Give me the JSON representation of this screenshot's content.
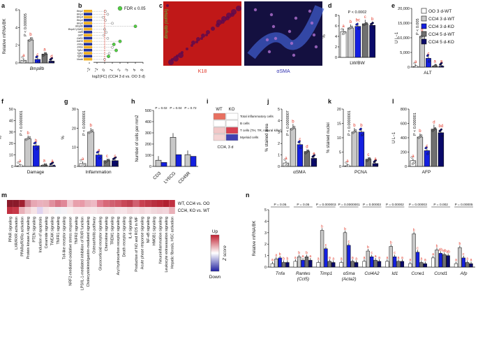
{
  "panel_letters": [
    "a",
    "b",
    "c",
    "d",
    "e",
    "f",
    "g",
    "h",
    "i",
    "j",
    "k",
    "l",
    "m",
    "n"
  ],
  "colors": {
    "oo": "#ffffff",
    "wt3": "#c8c8c8",
    "ko3": "#1420e0",
    "wt5": "#707070",
    "ko5": "#0a0a6a",
    "red_sig": "#e03020",
    "green": "#50d040",
    "heat_up": "#c02030",
    "heat_down": "#2020a0"
  },
  "legend": {
    "items": [
      {
        "label": "OO 3 d-WT",
        "color": "#ffffff"
      },
      {
        "label": "CCl4 3 d-WT",
        "color": "#c8c8c8"
      },
      {
        "label": "CCl4 3 d-KO",
        "color": "#1420e0"
      },
      {
        "label": "CCl4 5 d-WT",
        "color": "#707070"
      },
      {
        "label": "CCl4 5 d-KO",
        "color": "#0a0a6a"
      }
    ]
  },
  "panel_a": {
    "ylabel": "Relative mRNA/BK",
    "xlabel": "Bmp8b",
    "pval": "P < 0.000005",
    "yticks": [
      "0",
      "2",
      "4",
      "6"
    ],
    "letters": [
      "a",
      "b",
      "c",
      "a",
      "d"
    ],
    "values": [
      0.3,
      2.6,
      0.4,
      1.0,
      0.2
    ]
  },
  "panel_b": {
    "genes": [
      "Bmp2",
      "Bmp3",
      "Bmp4",
      "Bmp5",
      "Bmp6",
      "Bmp8b",
      "Bmp10 (Gdf2)",
      "Gdf5",
      "Gdf7",
      "Gdf11",
      "Gdf15",
      "Inhba",
      "Inhbe",
      "Tgfb1",
      "Tgfb2",
      "Tgfb3",
      "Nodal"
    ],
    "legend": "FDR ≤ 0.05",
    "xlabel": "log2(FC) (CCl4 3 d vs. OO 3 d)",
    "xticks": [
      "−2",
      "−1",
      "0",
      "1",
      "2",
      "3",
      "4",
      "5"
    ],
    "values": [
      0.1,
      0.4,
      -0.2,
      0.1,
      1.0,
      4.0,
      0.0,
      0.2,
      -0.1,
      0.4,
      2.0,
      1.2,
      1.0,
      1.5,
      0.6,
      0.5,
      0.0
    ],
    "sig": [
      false,
      false,
      false,
      false,
      false,
      true,
      false,
      false,
      false,
      false,
      true,
      true,
      false,
      true,
      false,
      true,
      false
    ]
  },
  "panel_c": {
    "stain_label": "Bmp8b (mRNA)",
    "left_label": "K18",
    "right_label": "αSMA"
  },
  "panel_d": {
    "pval": "P < 0.0002",
    "ylabel": "%",
    "xlabel": "LW/BW",
    "yticks": [
      "0",
      "2",
      "4",
      "6",
      "8"
    ],
    "letters": [
      "a",
      "b",
      "bc",
      "c",
      "b"
    ],
    "values": [
      4.9,
      5.6,
      5.9,
      6.4,
      6.1
    ]
  },
  "panel_e": {
    "pval": "P < 0.005",
    "ylabel": "U L−1",
    "xlabel": "ALT",
    "yticks": [
      "0",
      "5,000",
      "10,000",
      "15,000",
      "20,000"
    ],
    "letters": [
      "a",
      "b",
      "c",
      "a",
      "a"
    ],
    "values": [
      200,
      10500,
      3000,
      400,
      300
    ]
  },
  "panel_f": {
    "pval": "P < 0.0000001",
    "ylabel": "%",
    "xlabel": "Damage",
    "yticks": [
      "0",
      "10",
      "20",
      "30",
      "40",
      "50"
    ],
    "letters": [
      "a",
      "b",
      "b",
      "a",
      "a"
    ],
    "values": [
      0.5,
      24,
      18,
      1,
      0.5
    ]
  },
  "panel_g": {
    "pval": "P < 0.0000001",
    "ylabel": "%",
    "xlabel": "Inflammation",
    "yticks": [
      "0",
      "10",
      "20",
      "30"
    ],
    "letters": [
      "a",
      "b",
      "a",
      "c",
      "c"
    ],
    "values": [
      1.5,
      18,
      6,
      3,
      3
    ]
  },
  "panel_h": {
    "ylabel": "Number of cells per mm2",
    "pvals": [
      "P = 0.02",
      "P = 0.04",
      "P = 0.72"
    ],
    "categories": [
      "CD3",
      "LY6CG",
      "CD45R"
    ],
    "yticks": [
      "0",
      "100",
      "200",
      "300",
      "400",
      "500"
    ],
    "wt": [
      55,
      260,
      105
    ],
    "ko": [
      35,
      105,
      90
    ]
  },
  "panel_i": {
    "headers": [
      "WT",
      "KO"
    ],
    "rows": [
      "Total inflammatory cells",
      "B cells",
      "T cells (TH, TR, natural killer)",
      "Myeloid cells"
    ],
    "footer": "CCl4, 3 d",
    "cells": [
      [
        "#e87060",
        "#ffffff"
      ],
      [
        "#ffffff",
        "#ffffff"
      ],
      [
        "#f2c8c8",
        "#d84050"
      ],
      [
        "#f4d4d4",
        "#4040b0"
      ]
    ]
  },
  "panel_j": {
    "pval": "P < 0.0000007",
    "ylabel": "% stained area",
    "xlabel": "αSMA",
    "yticks": [
      "0",
      "1",
      "2",
      "3",
      "4",
      "5"
    ],
    "letters": [
      "a",
      "b",
      "c",
      "d",
      "e"
    ],
    "values": [
      0.3,
      3.3,
      1.9,
      1.3,
      0.7
    ]
  },
  "panel_k": {
    "pval": "P < 0.0000001",
    "ylabel": "% stained nuclei",
    "xlabel": "PCNA",
    "yticks": [
      "0",
      "5",
      "10",
      "15",
      "20"
    ],
    "letters": [
      "a",
      "b",
      "b",
      "c",
      "a"
    ],
    "values": [
      0.2,
      12,
      12,
      2.5,
      1
    ]
  },
  "panel_l": {
    "pval": "P < 0.000001",
    "ylabel": "U L−1",
    "xlabel": "AFP",
    "yticks": [
      "0",
      "200",
      "400",
      "600",
      "800"
    ],
    "letters": [
      "a",
      "b",
      "c",
      "d",
      "bd"
    ],
    "values": [
      80,
      410,
      220,
      520,
      470
    ]
  },
  "panel_m": {
    "rows": [
      "WT, CCl4 vs. OO",
      "CCl4, KO vs. WT"
    ],
    "pathways": [
      "PPAR signaling",
      "LXR/RXR activation",
      "PPARα/RXRα activation",
      "Protein kinase A signaling",
      "PTEN signaling",
      "Induction of apoptosis",
      "Ceramide signaling",
      "TWEAK signaling",
      "TNFR1 signaling",
      "Toll-like receptor signaling",
      "NRF2-mediated oxidative stress response",
      "TNFR2 signaling",
      "LPS/IL-1-mediated inhibition of RXR function",
      "Cholecystokinin/gastrin-mediated signaling",
      "Osteoarthritis pathway",
      "Glucocorticoid receptor signaling",
      "Chemokine signaling",
      "TREM1 signaling",
      "Aryl hydrocarbon receptor signaling",
      "Death receptor signaling",
      "IL-6 signaling",
      "Production of NO and ROS in MF",
      "Acute phase response signaling",
      "NF-κB signaling",
      "HMGB1 signaling",
      "Neuroinflammation signaling",
      "Leukocyte extravasation signaling",
      "Hepatic fibrosis, HSC activation"
    ],
    "row1": [
      "#8a1a2a",
      "#8a1a2a",
      "#a02030",
      "#d08090",
      "#e7a7b3",
      "#eab0bd",
      "#e8b0b8",
      "#e0909e",
      "#d87888",
      "#e08898",
      "#f0c8d0",
      "#e8a0ac",
      "#e89aa8",
      "#e8b2bc",
      "#eeb9c4",
      "#e07e90",
      "#d86878",
      "#d06070",
      "#d05868",
      "#c84858",
      "#c04050",
      "#d06070",
      "#c84050",
      "#c03848",
      "#b83040",
      "#b82838",
      "#b02030",
      "#c03040"
    ],
    "row2": [
      "#c03040",
      "#c83848",
      "#e8b0b8",
      "#f0d0d4",
      "#f6e4e6",
      "#e0d4f0",
      "#f4e4e8",
      "#f8eeee",
      "#eef0f4",
      "#f4f2f6",
      "#f8f0f0",
      "#f8e4e8",
      "#f6e2e6",
      "#f8e4e8",
      "#f6e8ea",
      "#f4e0e4",
      "#f2dce0",
      "#f0d8dc",
      "#f4e2e6",
      "#f6e4e8",
      "#f2d8dc",
      "#f6e0e4",
      "#f2d8dc",
      "#f6e0e4",
      "#f0d8dc",
      "#f0d2d8",
      "#f2d6dc",
      "#e8b0b8"
    ],
    "scale_top": "Up",
    "scale_bottom": "Down",
    "scale_label": "Z score"
  },
  "panel_n": {
    "ylabel": "Relative mRNA/BK",
    "yticks": [
      "0",
      "1",
      "2",
      "3",
      "4",
      "5"
    ],
    "genes": [
      {
        "name": "Tnfa",
        "sub": "",
        "pval": "P = 0.05",
        "values": [
          0.3,
          0.7,
          0.8,
          0.4,
          0.4
        ],
        "letters": [
          "a",
          "a",
          "b",
          "b",
          "b"
        ]
      },
      {
        "name": "Rantes",
        "sub": "(Ccl5)",
        "pval": "P = 0.05",
        "values": [
          0.5,
          0.9,
          0.6,
          0.9,
          0.6
        ],
        "letters": [
          "a",
          "b",
          "a",
          "b",
          "a"
        ]
      },
      {
        "name": "Timp1",
        "sub": "",
        "pval": "P = 0.000003",
        "values": [
          0.4,
          3.2,
          1.6,
          0.5,
          0.4
        ],
        "letters": [
          "a",
          "b",
          "c",
          "a",
          "a"
        ]
      },
      {
        "name": "αSma",
        "sub": "(Acta2)",
        "pval": "P = 0.0000001",
        "values": [
          0.4,
          3.0,
          1.9,
          0.5,
          0.4
        ],
        "letters": [
          "a",
          "b",
          "c",
          "a",
          "a"
        ]
      },
      {
        "name": "Col4A2",
        "sub": "",
        "pval": "P = 0.00003",
        "values": [
          0.5,
          1.4,
          0.9,
          0.6,
          0.5
        ],
        "letters": [
          "a",
          "b",
          "c",
          "a",
          "a"
        ]
      },
      {
        "name": "Id1",
        "sub": "",
        "pval": "P = 0.00002",
        "values": [
          0.5,
          1.8,
          0.9,
          0.5,
          0.5
        ],
        "letters": [
          "a",
          "b",
          "c",
          "a",
          "a"
        ]
      },
      {
        "name": "Ccne1",
        "sub": "",
        "pval": "P = 0.00003",
        "values": [
          0.3,
          2.9,
          1.3,
          0.4,
          0.3
        ],
        "letters": [
          "a",
          "b",
          "c",
          "a",
          "a"
        ]
      },
      {
        "name": "Ccnd1",
        "sub": "",
        "pval": "P = 0.002",
        "values": [
          0.8,
          1.5,
          1.2,
          1.1,
          1.0
        ],
        "letters": [
          "a",
          "b",
          "ab",
          "ab",
          "ab"
        ]
      },
      {
        "name": "Afp",
        "sub": "",
        "pval": "P = 0.00005",
        "values": [
          0.3,
          1.7,
          0.8,
          0.4,
          0.3
        ],
        "letters": [
          "a",
          "b",
          "c",
          "a",
          "a"
        ]
      }
    ]
  }
}
